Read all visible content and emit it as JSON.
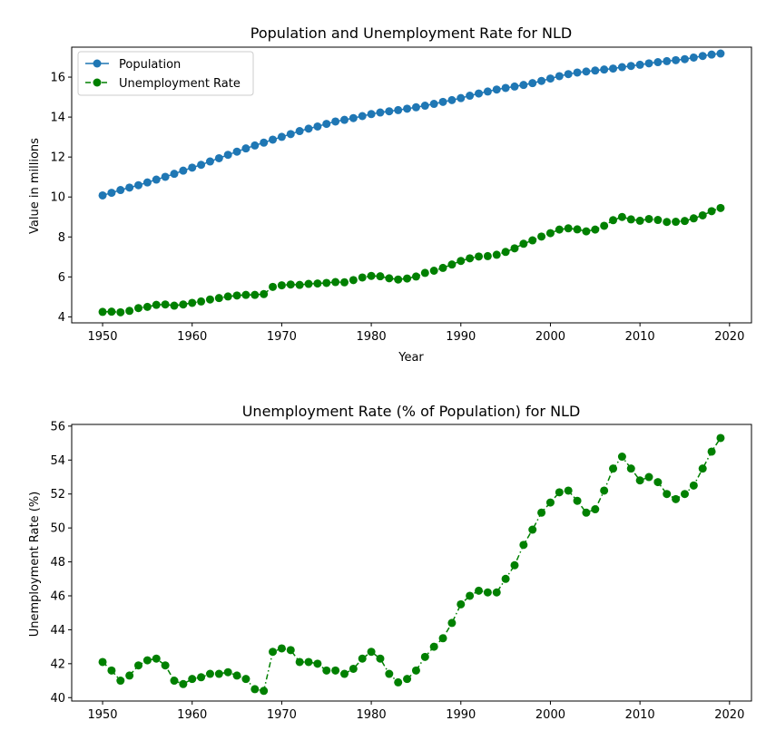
{
  "chart_data": [
    {
      "type": "line",
      "title": "Population and Unemployment Rate  for NLD",
      "xlabel": "Year",
      "ylabel": "Value in millions",
      "xlim": [
        1946.55,
        2022.45
      ],
      "ylim": [
        3.7,
        17.5
      ],
      "xticks": [
        1950,
        1960,
        1970,
        1980,
        1990,
        2000,
        2010,
        2020
      ],
      "yticks": [
        4,
        6,
        8,
        10,
        12,
        14,
        16
      ],
      "legend_position": "upper-left",
      "grid": false,
      "x": [
        1950,
        1951,
        1952,
        1953,
        1954,
        1955,
        1956,
        1957,
        1958,
        1959,
        1960,
        1961,
        1962,
        1963,
        1964,
        1965,
        1966,
        1967,
        1968,
        1969,
        1970,
        1971,
        1972,
        1973,
        1974,
        1975,
        1976,
        1977,
        1978,
        1979,
        1980,
        1981,
        1982,
        1983,
        1984,
        1985,
        1986,
        1987,
        1988,
        1989,
        1990,
        1991,
        1992,
        1993,
        1994,
        1995,
        1996,
        1997,
        1998,
        1999,
        2000,
        2001,
        2002,
        2003,
        2004,
        2005,
        2006,
        2007,
        2008,
        2009,
        2010,
        2011,
        2012,
        2013,
        2014,
        2015,
        2016,
        2017,
        2018,
        2019
      ],
      "series": [
        {
          "name": "Population",
          "color": "#1f77b4",
          "line_style": "solid",
          "marker": "circle",
          "values": [
            10.08,
            10.21,
            10.35,
            10.47,
            10.59,
            10.73,
            10.87,
            11.01,
            11.16,
            11.32,
            11.47,
            11.61,
            11.78,
            11.94,
            12.11,
            12.27,
            12.43,
            12.58,
            12.72,
            12.87,
            13.01,
            13.15,
            13.3,
            13.42,
            13.53,
            13.66,
            13.78,
            13.86,
            13.95,
            14.05,
            14.15,
            14.23,
            14.29,
            14.35,
            14.42,
            14.49,
            14.57,
            14.66,
            14.76,
            14.85,
            14.95,
            15.07,
            15.18,
            15.28,
            15.38,
            15.46,
            15.53,
            15.61,
            15.7,
            15.81,
            15.93,
            16.05,
            16.15,
            16.23,
            16.28,
            16.33,
            16.38,
            16.43,
            16.5,
            16.56,
            16.62,
            16.69,
            16.75,
            16.8,
            16.85,
            16.9,
            16.98,
            17.06,
            17.13,
            17.18
          ]
        },
        {
          "name": "Unemployment Rate",
          "color": "#008000",
          "line_style": "dashed",
          "marker": "circle",
          "values": [
            4.25,
            4.26,
            4.23,
            4.3,
            4.44,
            4.5,
            4.6,
            4.62,
            4.56,
            4.62,
            4.7,
            4.77,
            4.87,
            4.94,
            5.02,
            5.07,
            5.1,
            5.1,
            5.14,
            5.5,
            5.58,
            5.62,
            5.6,
            5.65,
            5.67,
            5.7,
            5.74,
            5.73,
            5.84,
            5.97,
            6.05,
            6.03,
            5.93,
            5.87,
            5.92,
            6.02,
            6.2,
            6.31,
            6.45,
            6.62,
            6.8,
            6.93,
            7.02,
            7.04,
            7.11,
            7.25,
            7.43,
            7.66,
            7.83,
            8.02,
            8.19,
            8.37,
            8.43,
            8.38,
            8.28,
            8.37,
            8.56,
            8.84,
            9.0,
            8.88,
            8.81,
            8.9,
            8.85,
            8.75,
            8.76,
            8.8,
            8.93,
            9.08,
            9.29,
            9.45
          ]
        }
      ]
    },
    {
      "type": "line",
      "title": "Unemployment Rate (% of Population) for NLD",
      "xlabel": "",
      "ylabel": "Unemployment Rate (%)",
      "xlim": [
        1946.55,
        2022.45
      ],
      "ylim": [
        39.8,
        56.1
      ],
      "xticks": [
        1950,
        1960,
        1970,
        1980,
        1990,
        2000,
        2010,
        2020
      ],
      "yticks": [
        40,
        42,
        44,
        46,
        48,
        50,
        52,
        54,
        56
      ],
      "grid": false,
      "x": [
        1950,
        1951,
        1952,
        1953,
        1954,
        1955,
        1956,
        1957,
        1958,
        1959,
        1960,
        1961,
        1962,
        1963,
        1964,
        1965,
        1966,
        1967,
        1968,
        1969,
        1970,
        1971,
        1972,
        1973,
        1974,
        1975,
        1976,
        1977,
        1978,
        1979,
        1980,
        1981,
        1982,
        1983,
        1984,
        1985,
        1986,
        1987,
        1988,
        1989,
        1990,
        1991,
        1992,
        1993,
        1994,
        1995,
        1996,
        1997,
        1998,
        1999,
        2000,
        2001,
        2002,
        2003,
        2004,
        2005,
        2006,
        2007,
        2008,
        2009,
        2010,
        2011,
        2012,
        2013,
        2014,
        2015,
        2016,
        2017,
        2018,
        2019
      ],
      "series": [
        {
          "color": "#008000",
          "line_style": "dashdot",
          "marker": "circle",
          "values": [
            42.1,
            41.6,
            41.0,
            41.3,
            41.9,
            42.2,
            42.3,
            41.9,
            41.0,
            40.8,
            41.1,
            41.2,
            41.4,
            41.4,
            41.5,
            41.3,
            41.1,
            40.5,
            40.4,
            42.7,
            42.9,
            42.8,
            42.1,
            42.1,
            42.0,
            41.6,
            41.6,
            41.4,
            41.7,
            42.3,
            42.7,
            42.3,
            41.4,
            40.9,
            41.1,
            41.6,
            42.4,
            43.0,
            43.5,
            44.4,
            45.5,
            46.0,
            46.3,
            46.2,
            46.2,
            47.0,
            47.8,
            49.0,
            49.9,
            50.9,
            51.5,
            52.1,
            52.2,
            51.6,
            50.9,
            51.1,
            52.2,
            53.5,
            54.2,
            53.5,
            52.8,
            53.0,
            52.7,
            52.0,
            51.7,
            52.0,
            52.5,
            53.5,
            54.5,
            55.3
          ]
        }
      ]
    }
  ]
}
